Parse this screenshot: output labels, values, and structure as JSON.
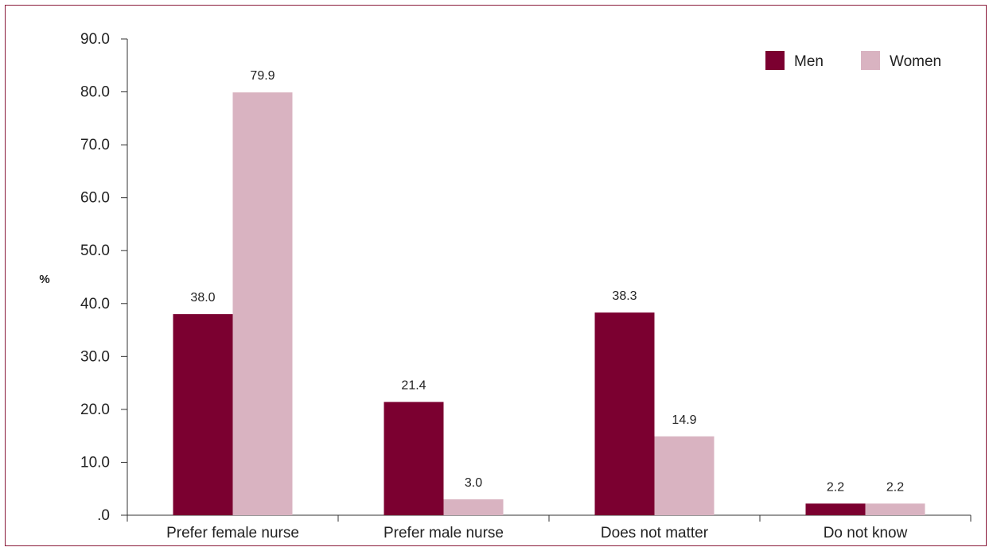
{
  "chart_data": {
    "type": "bar",
    "title": "",
    "xlabel": "",
    "ylabel": "%",
    "ylim": [
      0,
      90
    ],
    "yticks": [
      0,
      10,
      20,
      30,
      40,
      50,
      60,
      70,
      80,
      90
    ],
    "ytick_labels": [
      ".0",
      "10.0",
      "20.0",
      "30.0",
      "40.0",
      "50.0",
      "60.0",
      "70.0",
      "80.0",
      "90.0"
    ],
    "grid": false,
    "legend_position": "top-right",
    "categories": [
      "Prefer female nurse",
      "Prefer male nurse",
      "Does not matter",
      "Do not know"
    ],
    "series": [
      {
        "name": "Men",
        "color": "#7b0030",
        "values": [
          38.0,
          21.4,
          38.3,
          2.2
        ],
        "labels": [
          "38.0",
          "21.4",
          "38.3",
          "2.2"
        ]
      },
      {
        "name": "Women",
        "color": "#d9b3c1",
        "values": [
          79.9,
          3.0,
          14.9,
          2.2
        ],
        "labels": [
          "79.9",
          "3.0",
          "14.9",
          "2.2"
        ]
      }
    ]
  }
}
